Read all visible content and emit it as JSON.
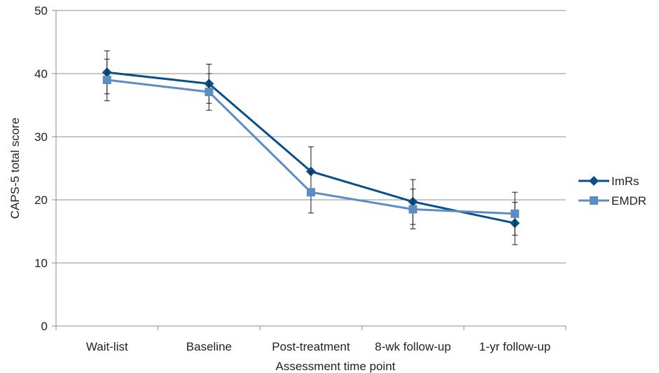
{
  "chart_data": {
    "type": "line",
    "title": "",
    "xlabel": "Assessment time point",
    "ylabel": "CAPS-5 total score",
    "categories": [
      "Wait-list",
      "Baseline",
      "Post-treatment",
      "8-wk follow-up",
      "1-yr follow-up"
    ],
    "ylim": [
      0,
      50
    ],
    "yticks": [
      0,
      10,
      20,
      30,
      40,
      50
    ],
    "grid": true,
    "legend_position": "right",
    "series": [
      {
        "name": "ImRs",
        "color": "#0b4f8a",
        "marker": "diamond",
        "values": [
          40.2,
          38.4,
          24.5,
          19.7,
          16.3
        ],
        "error_low": [
          36.8,
          35.3,
          20.7,
          16.1,
          12.9
        ],
        "error_high": [
          43.6,
          41.5,
          28.4,
          23.2,
          19.6
        ]
      },
      {
        "name": "EMDR",
        "color": "#5b8dc4",
        "marker": "square",
        "values": [
          39.0,
          37.1,
          21.2,
          18.5,
          17.8
        ],
        "error_low": [
          35.7,
          34.2,
          17.9,
          15.4,
          14.4
        ],
        "error_high": [
          42.3,
          40.0,
          24.5,
          21.7,
          21.2
        ]
      }
    ]
  }
}
